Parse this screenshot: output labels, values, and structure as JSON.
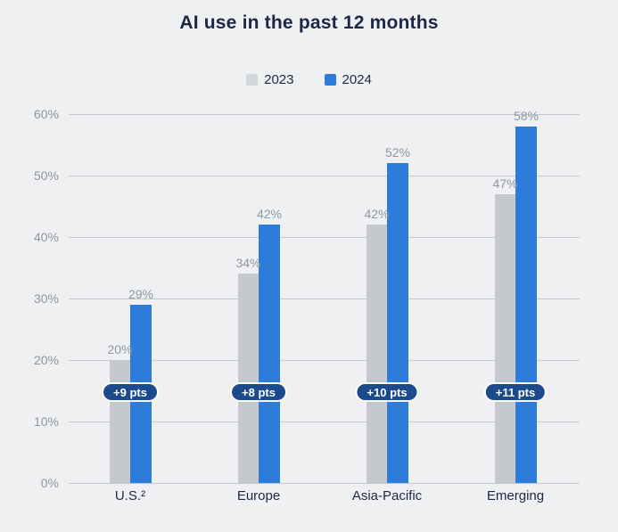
{
  "title": "AI use in the past 12 months",
  "legend": {
    "items": [
      {
        "label": "2023",
        "color": "#d4d7da"
      },
      {
        "label": "2024",
        "color": "#2e7cd9"
      }
    ]
  },
  "chart_data": {
    "type": "bar",
    "title": "AI use in the past 12 months",
    "categories": [
      "U.S.²",
      "Europe",
      "Asia-Pacific",
      "Emerging"
    ],
    "series": [
      {
        "name": "2023",
        "color": "#c5c8cd",
        "values": [
          20,
          34,
          42,
          47
        ]
      },
      {
        "name": "2024",
        "color": "#2e7cd9",
        "values": [
          29,
          42,
          52,
          58
        ]
      }
    ],
    "annotations": [
      "+9 pts",
      "+8 pts",
      "+10 pts",
      "+11 pts"
    ],
    "value_labels": {
      "2023": [
        "20%",
        "34%",
        "42%",
        "47%"
      ],
      "2024": [
        "29%",
        "42%",
        "52%",
        "58%"
      ]
    },
    "xlabel": "",
    "ylabel": "",
    "y_ticks": [
      "0%",
      "10%",
      "20%",
      "30%",
      "40%",
      "50%",
      "60%"
    ],
    "y_tick_values": [
      0,
      10,
      20,
      30,
      40,
      50,
      60
    ],
    "ylim": [
      0,
      60
    ],
    "value_suffix": "%",
    "grid": true,
    "legend_position": "top-center"
  },
  "colors": {
    "background": "#eef0f2",
    "text_dark": "#1f2747",
    "text_muted": "#9095a0",
    "gridline": "#c5c8ce",
    "bar_2023": "#c5c8cd",
    "bar_2024": "#2e7cd9",
    "pill_background": "#1b4b8d",
    "pill_border": "#ffffff",
    "pill_text": "#ffffff"
  }
}
